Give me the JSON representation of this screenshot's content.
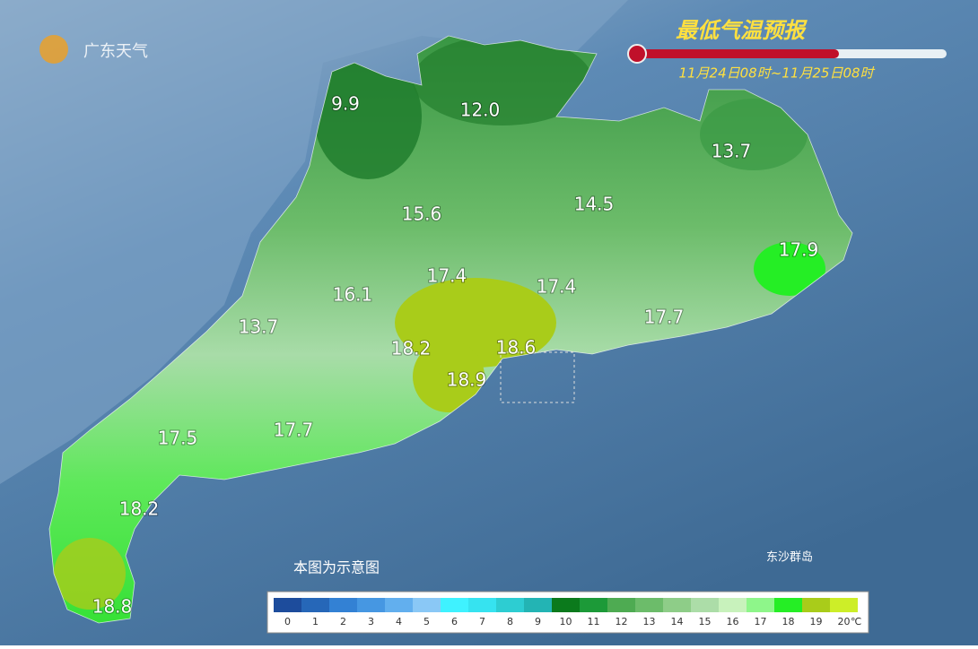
{
  "header": {
    "logo": "广东天气",
    "title": "最低气温预报",
    "time_range": "11月24日08时~11月25日08时"
  },
  "map": {
    "labels": [
      "9.9",
      "12.0",
      "13.7",
      "15.6",
      "14.5",
      "17.9",
      "17.4",
      "17.4",
      "16.1",
      "13.7",
      "18.2",
      "18.6",
      "17.7",
      "18.9",
      "17.5",
      "17.7",
      "18.2",
      "18.8"
    ],
    "note": "本图为示意图",
    "island": "东沙群岛"
  },
  "legend": {
    "ticks": [
      0,
      1,
      2,
      3,
      4,
      5,
      6,
      7,
      8,
      9,
      10,
      11,
      12,
      13,
      14,
      15,
      16,
      17,
      18,
      19,
      20
    ],
    "colors": [
      "#1d4c9c",
      "#2667b8",
      "#3381d4",
      "#4697e2",
      "#62afee",
      "#8ac8f6",
      "#3ff2ff",
      "#36e3f0",
      "#2dcdd2",
      "#23b4b4",
      "#0b7a1c",
      "#1c9a38",
      "#4eab52",
      "#6cbc6a",
      "#8ecd88",
      "#acdda8",
      "#c8f2bc",
      "#8ef68a",
      "#25ee25",
      "#a9cc1a",
      "#cdee28"
    ],
    "unit": "℃"
  }
}
